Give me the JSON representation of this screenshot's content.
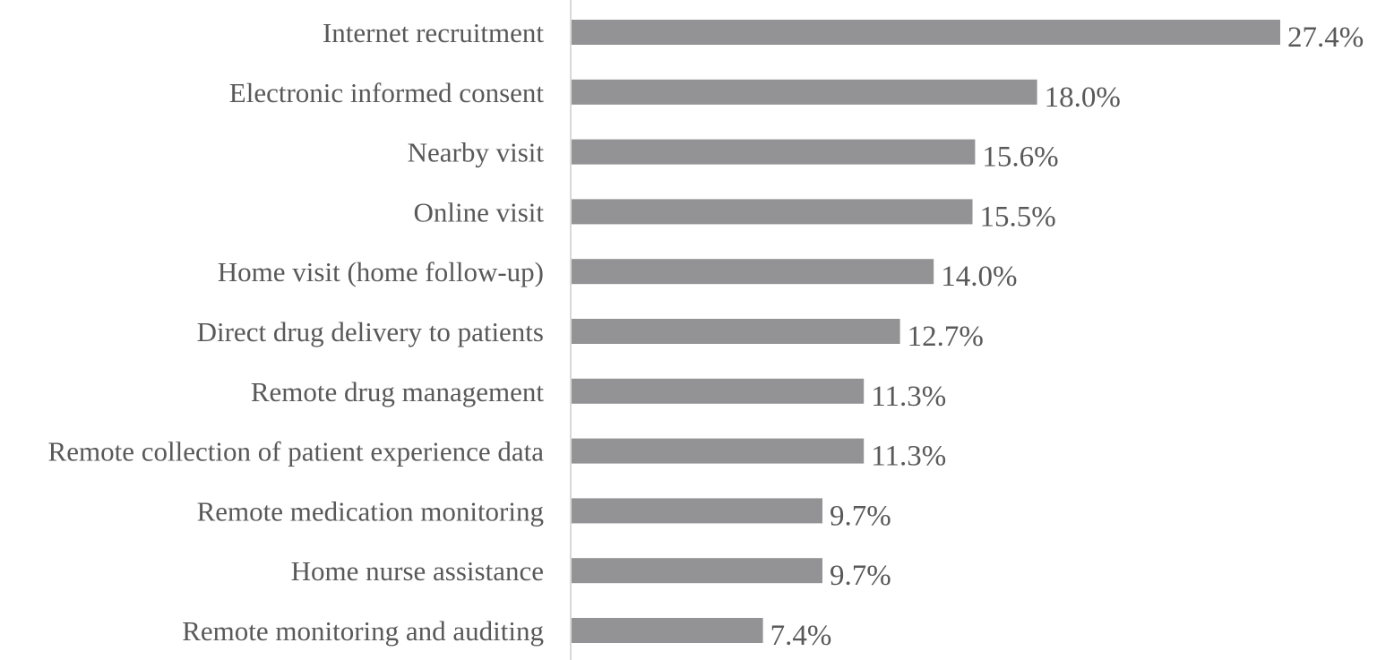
{
  "chart_data": {
    "type": "bar",
    "orientation": "horizontal",
    "categories": [
      "Internet recruitment",
      "Electronic informed consent",
      "Nearby visit",
      "Online visit",
      "Home visit (home follow-up)",
      "Direct drug delivery to patients",
      "Remote drug management",
      "Remote collection of patient experience data",
      "Remote medication monitoring",
      "Home nurse assistance",
      "Remote monitoring and auditing"
    ],
    "values": [
      27.4,
      18.0,
      15.6,
      15.5,
      14.0,
      12.7,
      11.3,
      11.3,
      9.7,
      9.7,
      7.4
    ],
    "value_labels": [
      "27.4%",
      "18.0%",
      "15.6%",
      "15.5%",
      "14.0%",
      "12.7%",
      "11.3%",
      "11.3%",
      "9.7%",
      "9.7%",
      "7.4%"
    ],
    "unit": "%",
    "title": "",
    "xlabel": "",
    "ylabel": "",
    "xlim": [
      0,
      27.4
    ],
    "grid": false,
    "legend": "none",
    "bar_color": "#939396",
    "axis_color": "#d9d9d9",
    "text_color": "#595959"
  }
}
